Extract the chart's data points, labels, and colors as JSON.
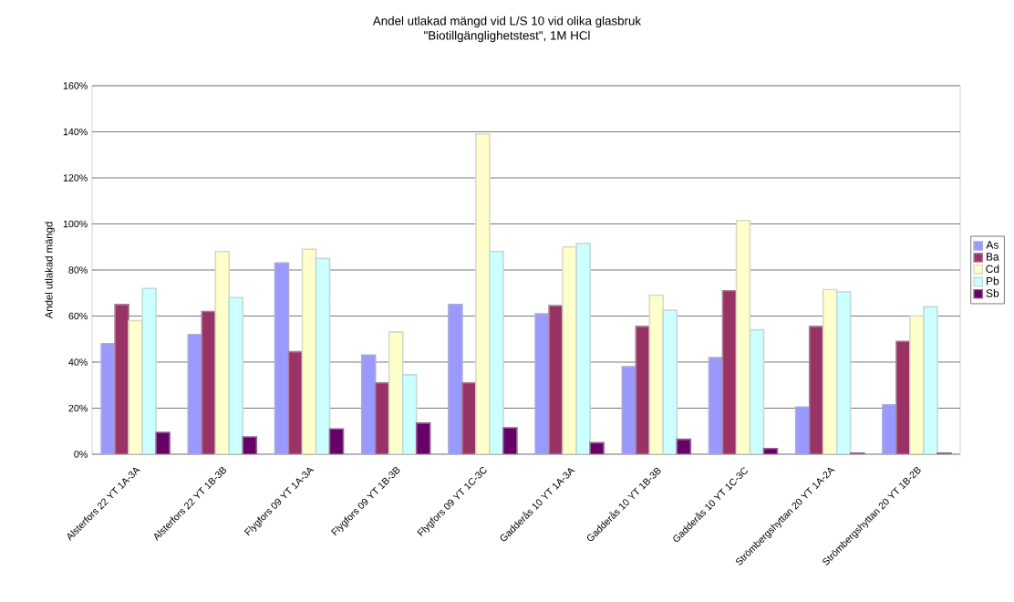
{
  "chart_data": {
    "type": "bar",
    "title": "Andel utlakad mängd vid L/S 10 vid olika glasbruk",
    "subtitle": "\"Biotillgänglighetstest\", 1M HCl",
    "ylabel": "Andel utlakad mängd",
    "categories": [
      "Alsterfors 22 YT 1A-3A",
      "Alsterfors 22 YT 1B-3B",
      "Flygfors 09 YT 1A-3A",
      "Flygfors 09 YT 1B-3B",
      "Flygfors 09 YT 1C-3C",
      "Gadderås 10 YT 1A-3A",
      "Gadderås 10 YT 1B-3B",
      "Gadderås 10 YT 1C-3C",
      "Strömbergshyttan 20 YT 1A-2A",
      "Strömbergshyttan 20 YT 1B-2B"
    ],
    "series": [
      {
        "name": "As",
        "color": "#9999ff",
        "values": [
          48,
          52,
          83,
          43,
          65,
          61,
          38,
          42,
          20.5,
          21.5
        ]
      },
      {
        "name": "Ba",
        "color": "#993366",
        "values": [
          65,
          62,
          44.5,
          31,
          31,
          64.5,
          55.5,
          71,
          55.5,
          49
        ]
      },
      {
        "name": "Cd",
        "color": "#ffffcc",
        "values": [
          58,
          88,
          89,
          53,
          139,
          90,
          69,
          101.5,
          71.5,
          60
        ]
      },
      {
        "name": "Pb",
        "color": "#ccffff",
        "values": [
          72,
          68,
          85,
          34.5,
          88,
          91.5,
          62.5,
          54,
          70.5,
          64
        ]
      },
      {
        "name": "Sb",
        "color": "#660066",
        "values": [
          9.5,
          7.5,
          11,
          13.5,
          11.5,
          5,
          6.5,
          2.5,
          0.5,
          0.5
        ]
      }
    ],
    "ylim": [
      0,
      160
    ],
    "yticks": [
      {
        "value": 0,
        "label": "0%"
      },
      {
        "value": 20,
        "label": "20%"
      },
      {
        "value": 40,
        "label": "40%"
      },
      {
        "value": 60,
        "label": "60%"
      },
      {
        "value": 80,
        "label": "80%"
      },
      {
        "value": 100,
        "label": "100%"
      },
      {
        "value": 120,
        "label": "120%"
      },
      {
        "value": 140,
        "label": "140%"
      },
      {
        "value": 160,
        "label": "160%"
      }
    ],
    "grid": "y",
    "legend": "right"
  }
}
